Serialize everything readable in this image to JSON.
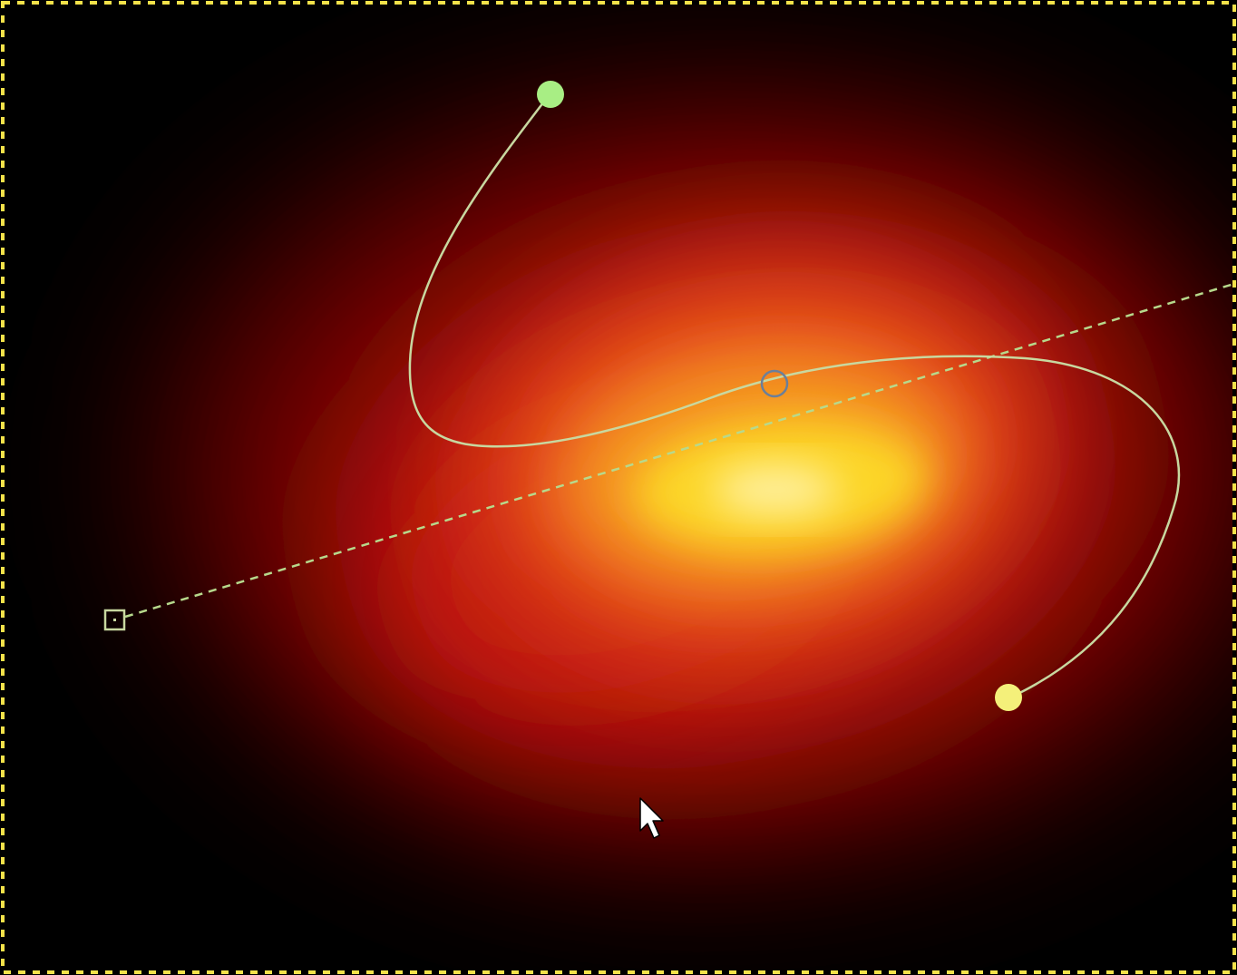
{
  "canvas": {
    "background_color": "#000000",
    "gradient": {
      "type": "shapeburst-spiral",
      "colors": {
        "outer": "#000000",
        "deep_red": "#5a0000",
        "red": "#c01808",
        "orange": "#e8501a",
        "amber": "#f59a20",
        "yellow": "#fcd628",
        "highlight": "#fff2a8"
      }
    },
    "selection_marching_ants": {
      "colors": [
        "#f2e24a",
        "#000000"
      ]
    },
    "tool_overlay": {
      "guide_color": "#b7d98c",
      "curve_color": "#c8d8a0",
      "start_handle_color": "#a8ee84",
      "end_handle_color": "#f4f07a",
      "center_handle_color": "#6b7f9a",
      "anchor_icon": "square-anchor-icon",
      "start_icon": "green-handle-icon",
      "end_icon": "yellow-handle-icon",
      "center_icon": "center-ring-icon",
      "cursor_icon": "arrow-pointer-icon"
    }
  }
}
